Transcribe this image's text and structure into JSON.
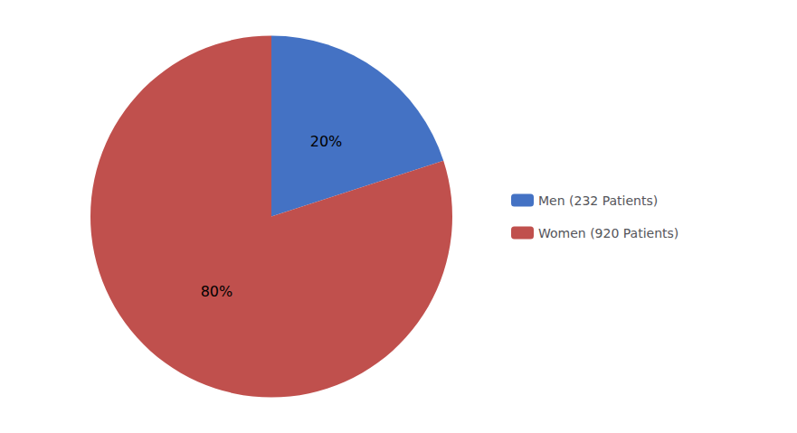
{
  "chart_data": {
    "type": "pie",
    "categories": [
      "Men (232 Patients)",
      "Women (920 Patients)"
    ],
    "values": [
      20,
      80
    ],
    "value_labels": [
      "20%",
      "80%"
    ],
    "colors": [
      "#4472C4",
      "#C0504D"
    ],
    "data_labels": true,
    "legend": "right"
  }
}
